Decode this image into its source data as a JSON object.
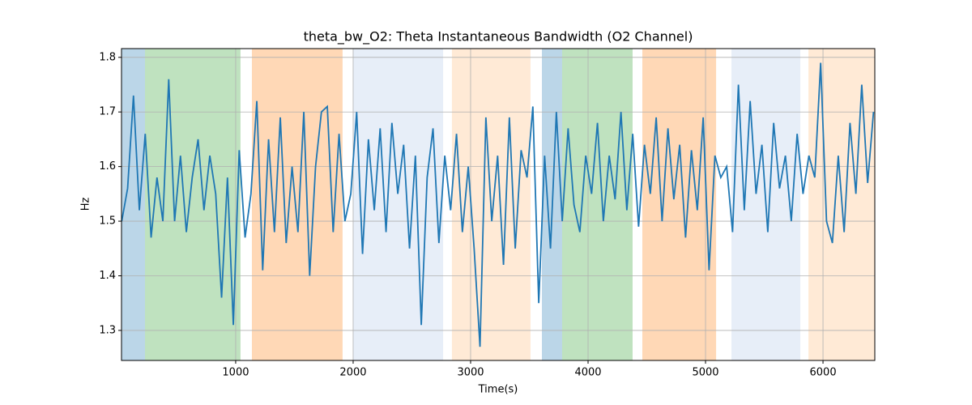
{
  "chart_data": {
    "type": "line",
    "title": "theta_bw_O2: Theta Instantaneous Bandwidth (O2 Channel)",
    "xlabel": "Time(s)",
    "ylabel": "Hz",
    "x": [
      30,
      80,
      130,
      180,
      230,
      280,
      330,
      380,
      430,
      480,
      530,
      580,
      630,
      680,
      730,
      780,
      830,
      880,
      930,
      980,
      1030,
      1080,
      1130,
      1180,
      1230,
      1280,
      1330,
      1380,
      1430,
      1480,
      1530,
      1580,
      1630,
      1680,
      1730,
      1780,
      1830,
      1880,
      1930,
      1980,
      2030,
      2080,
      2130,
      2180,
      2230,
      2280,
      2330,
      2380,
      2430,
      2480,
      2530,
      2580,
      2630,
      2680,
      2730,
      2780,
      2830,
      2880,
      2930,
      2980,
      3030,
      3080,
      3130,
      3180,
      3230,
      3280,
      3330,
      3380,
      3430,
      3480,
      3530,
      3580,
      3630,
      3680,
      3730,
      3780,
      3830,
      3880,
      3930,
      3980,
      4030,
      4080,
      4130,
      4180,
      4230,
      4280,
      4330,
      4380,
      4430,
      4480,
      4530,
      4580,
      4630,
      4680,
      4730,
      4780,
      4830,
      4880,
      4930,
      4980,
      5030,
      5080,
      5130,
      5180,
      5230,
      5280,
      5330,
      5380,
      5430,
      5480,
      5530,
      5580,
      5630,
      5680,
      5730,
      5780,
      5830,
      5880,
      5930,
      5980,
      6030,
      6080,
      6130,
      6180,
      6230,
      6280,
      6330,
      6380,
      6430
    ],
    "series": [
      {
        "color": "#1f77b4",
        "values": [
          1.5,
          1.56,
          1.73,
          1.52,
          1.66,
          1.47,
          1.58,
          1.5,
          1.76,
          1.5,
          1.62,
          1.48,
          1.58,
          1.65,
          1.52,
          1.62,
          1.55,
          1.36,
          1.58,
          1.31,
          1.63,
          1.47,
          1.55,
          1.72,
          1.41,
          1.65,
          1.48,
          1.69,
          1.46,
          1.6,
          1.48,
          1.7,
          1.4,
          1.6,
          1.7,
          1.71,
          1.48,
          1.66,
          1.5,
          1.55,
          1.7,
          1.44,
          1.65,
          1.52,
          1.67,
          1.48,
          1.68,
          1.55,
          1.64,
          1.45,
          1.62,
          1.31,
          1.58,
          1.67,
          1.46,
          1.62,
          1.52,
          1.66,
          1.48,
          1.6,
          1.45,
          1.27,
          1.69,
          1.5,
          1.62,
          1.42,
          1.69,
          1.45,
          1.63,
          1.58,
          1.71,
          1.35,
          1.62,
          1.45,
          1.7,
          1.5,
          1.67,
          1.53,
          1.48,
          1.62,
          1.55,
          1.68,
          1.5,
          1.62,
          1.54,
          1.7,
          1.52,
          1.66,
          1.49,
          1.64,
          1.55,
          1.69,
          1.5,
          1.67,
          1.54,
          1.64,
          1.47,
          1.63,
          1.52,
          1.69,
          1.41,
          1.62,
          1.58,
          1.6,
          1.48,
          1.75,
          1.52,
          1.72,
          1.55,
          1.64,
          1.48,
          1.68,
          1.56,
          1.62,
          1.5,
          1.66,
          1.55,
          1.62,
          1.58,
          1.79,
          1.5,
          1.46,
          1.62,
          1.48,
          1.68,
          1.55,
          1.75,
          1.57,
          1.7
        ]
      }
    ],
    "spans": [
      {
        "start": 28,
        "end": 228,
        "color": "#1f77b4",
        "opacity": 0.3
      },
      {
        "start": 228,
        "end": 1041,
        "color": "#2ca02c",
        "opacity": 0.3
      },
      {
        "start": 1138,
        "end": 1910,
        "color": "#ff7f0e",
        "opacity": 0.3
      },
      {
        "start": 2000,
        "end": 2766,
        "color": "#aec7e8",
        "opacity": 0.3
      },
      {
        "start": 2841,
        "end": 3510,
        "color": "#ffbb78",
        "opacity": 0.3
      },
      {
        "start": 3607,
        "end": 3779,
        "color": "#1f77b4",
        "opacity": 0.3
      },
      {
        "start": 3779,
        "end": 4379,
        "color": "#2ca02c",
        "opacity": 0.3
      },
      {
        "start": 4462,
        "end": 5090,
        "color": "#ff7f0e",
        "opacity": 0.3
      },
      {
        "start": 5221,
        "end": 5807,
        "color": "#aec7e8",
        "opacity": 0.3
      },
      {
        "start": 5876,
        "end": 6441,
        "color": "#ffbb78",
        "opacity": 0.3
      }
    ],
    "xlim": [
      28,
      6441
    ],
    "ylim": [
      1.245,
      1.816
    ],
    "xticks": [
      1000,
      2000,
      3000,
      4000,
      5000,
      6000
    ],
    "yticks": [
      1.3,
      1.4,
      1.5,
      1.6,
      1.7,
      1.8
    ],
    "grid": true
  }
}
